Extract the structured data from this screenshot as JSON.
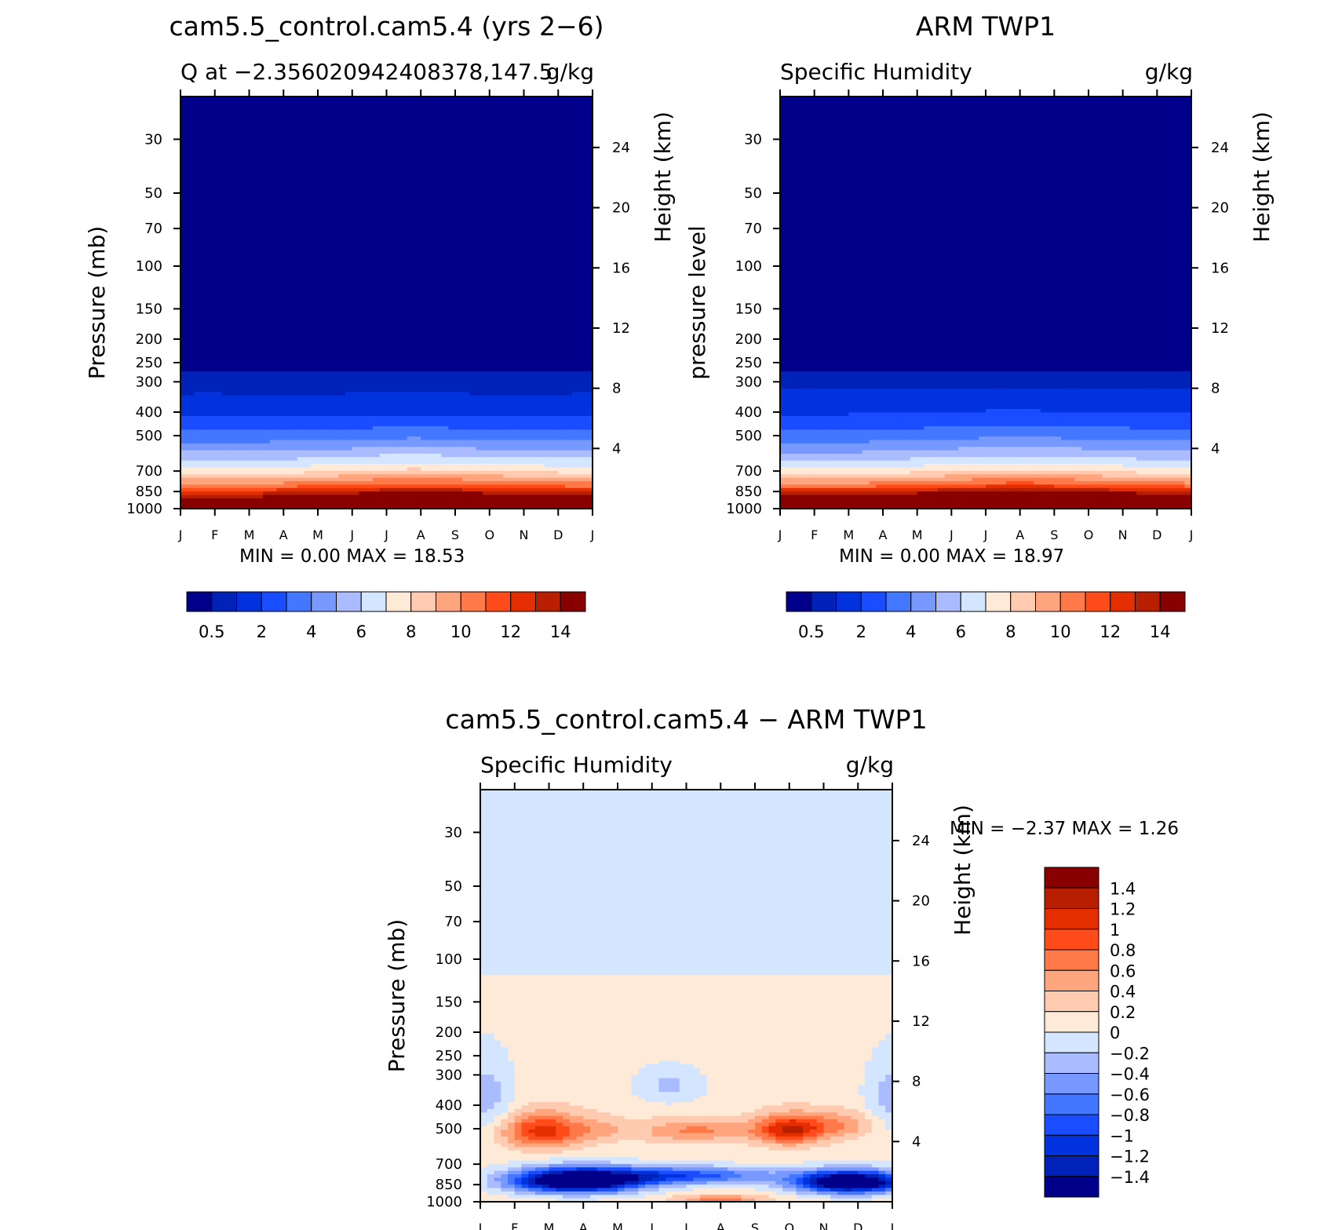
{
  "chart_data": [
    {
      "type": "heatmap",
      "id": "model",
      "title": "cam5.5_control.cam5.4 (yrs 2−6)",
      "left_subtitle": "Q at −2.356020942408378,147.5",
      "right_subtitle": "g/kg",
      "ylabel": "Pressure (mb)",
      "y2label": "Height (km)",
      "x_ticks": [
        "J",
        "F",
        "M",
        "A",
        "M",
        "J",
        "J",
        "A",
        "S",
        "O",
        "N",
        "D",
        "J"
      ],
      "p_ticks": [
        30,
        50,
        70,
        100,
        150,
        200,
        250,
        300,
        400,
        500,
        700,
        850,
        1000
      ],
      "p_range": [
        20,
        1000
      ],
      "z_ticks": [
        4,
        8,
        12,
        16,
        20,
        24
      ],
      "minmax_label": "MIN =    0.00  MAX =    18.53",
      "levels": [
        0.5,
        1,
        2,
        3,
        4,
        5,
        6,
        7,
        8,
        9,
        10,
        11,
        12,
        13,
        14
      ],
      "colorbar_labels": [
        "0.5",
        "2",
        "4",
        "6",
        "8",
        "10",
        "12",
        "14"
      ],
      "colorbar_label_levels": [
        0.5,
        2,
        4,
        6,
        8,
        10,
        12,
        14
      ],
      "field_profile": {
        "pressure": [
          20,
          250,
          300,
          400,
          500,
          600,
          700,
          800,
          850,
          925,
          1000
        ],
        "value": [
          0.3,
          0.3,
          0.7,
          1.8,
          3.6,
          5.8,
          8.0,
          11.0,
          13.2,
          16.0,
          18.5
        ]
      }
    },
    {
      "type": "heatmap",
      "id": "obs",
      "title": "ARM TWP1",
      "left_subtitle": "Specific Humidity",
      "right_subtitle": "g/kg",
      "ylabel": "pressure level",
      "y2label": "Height (km)",
      "x_ticks": [
        "J",
        "F",
        "M",
        "A",
        "M",
        "J",
        "J",
        "A",
        "S",
        "O",
        "N",
        "D",
        "J"
      ],
      "p_ticks": [
        30,
        50,
        70,
        100,
        150,
        200,
        250,
        300,
        400,
        500,
        700,
        850,
        1000
      ],
      "p_range": [
        20,
        1000
      ],
      "z_ticks": [
        4,
        8,
        12,
        16,
        20,
        24
      ],
      "minmax_label": "MIN =    0.00  MAX =    18.97",
      "levels": [
        0.5,
        1,
        2,
        3,
        4,
        5,
        6,
        7,
        8,
        9,
        10,
        11,
        12,
        13,
        14
      ],
      "colorbar_labels": [
        "0.5",
        "2",
        "4",
        "6",
        "8",
        "10",
        "12",
        "14"
      ],
      "colorbar_label_levels": [
        0.5,
        2,
        4,
        6,
        8,
        10,
        12,
        14
      ],
      "field_profile": {
        "pressure": [
          20,
          250,
          300,
          400,
          500,
          600,
          700,
          800,
          850,
          925,
          1000
        ],
        "value": [
          0.3,
          0.3,
          0.8,
          2.0,
          3.6,
          5.6,
          7.8,
          11.0,
          13.6,
          16.5,
          19.0
        ]
      }
    },
    {
      "type": "heatmap",
      "id": "diff",
      "title": "cam5.5_control.cam5.4 − ARM TWP1",
      "left_subtitle": "Specific Humidity",
      "right_subtitle": "g/kg",
      "ylabel": "Pressure (mb)",
      "y2label": "Height (km)",
      "x_ticks": [
        "J",
        "F",
        "M",
        "A",
        "M",
        "J",
        "J",
        "A",
        "S",
        "O",
        "N",
        "D",
        "J"
      ],
      "p_ticks": [
        30,
        50,
        70,
        100,
        150,
        200,
        250,
        300,
        400,
        500,
        700,
        850,
        1000
      ],
      "p_range": [
        20,
        1000
      ],
      "z_ticks": [
        4,
        8,
        12,
        16,
        20,
        24
      ],
      "minmax_label": "MIN =   −2.37  MAX =    1.26",
      "levels": [
        -1.4,
        -1.2,
        -1,
        -0.8,
        -0.6,
        -0.4,
        -0.2,
        0,
        0.2,
        0.4,
        0.6,
        0.8,
        1,
        1.2,
        1.4
      ],
      "colorbar_labels": [
        "1.4",
        "1.2",
        "1",
        "0.8",
        "0.6",
        "0.4",
        "0.2",
        "0",
        "−0.2",
        "−0.4",
        "−0.6",
        "−0.8",
        "−1",
        "−1.2",
        "−1.4"
      ]
    }
  ],
  "colors": {
    "palette": [
      "#00008b",
      "#0022b8",
      "#0033dd",
      "#1a4dff",
      "#4477ff",
      "#7799ff",
      "#aabbff",
      "#d4e6ff",
      "#ffead8",
      "#ffcbb0",
      "#ffa57e",
      "#ff7a48",
      "#ff4c1a",
      "#e52e00",
      "#b81e00",
      "#880000"
    ]
  }
}
